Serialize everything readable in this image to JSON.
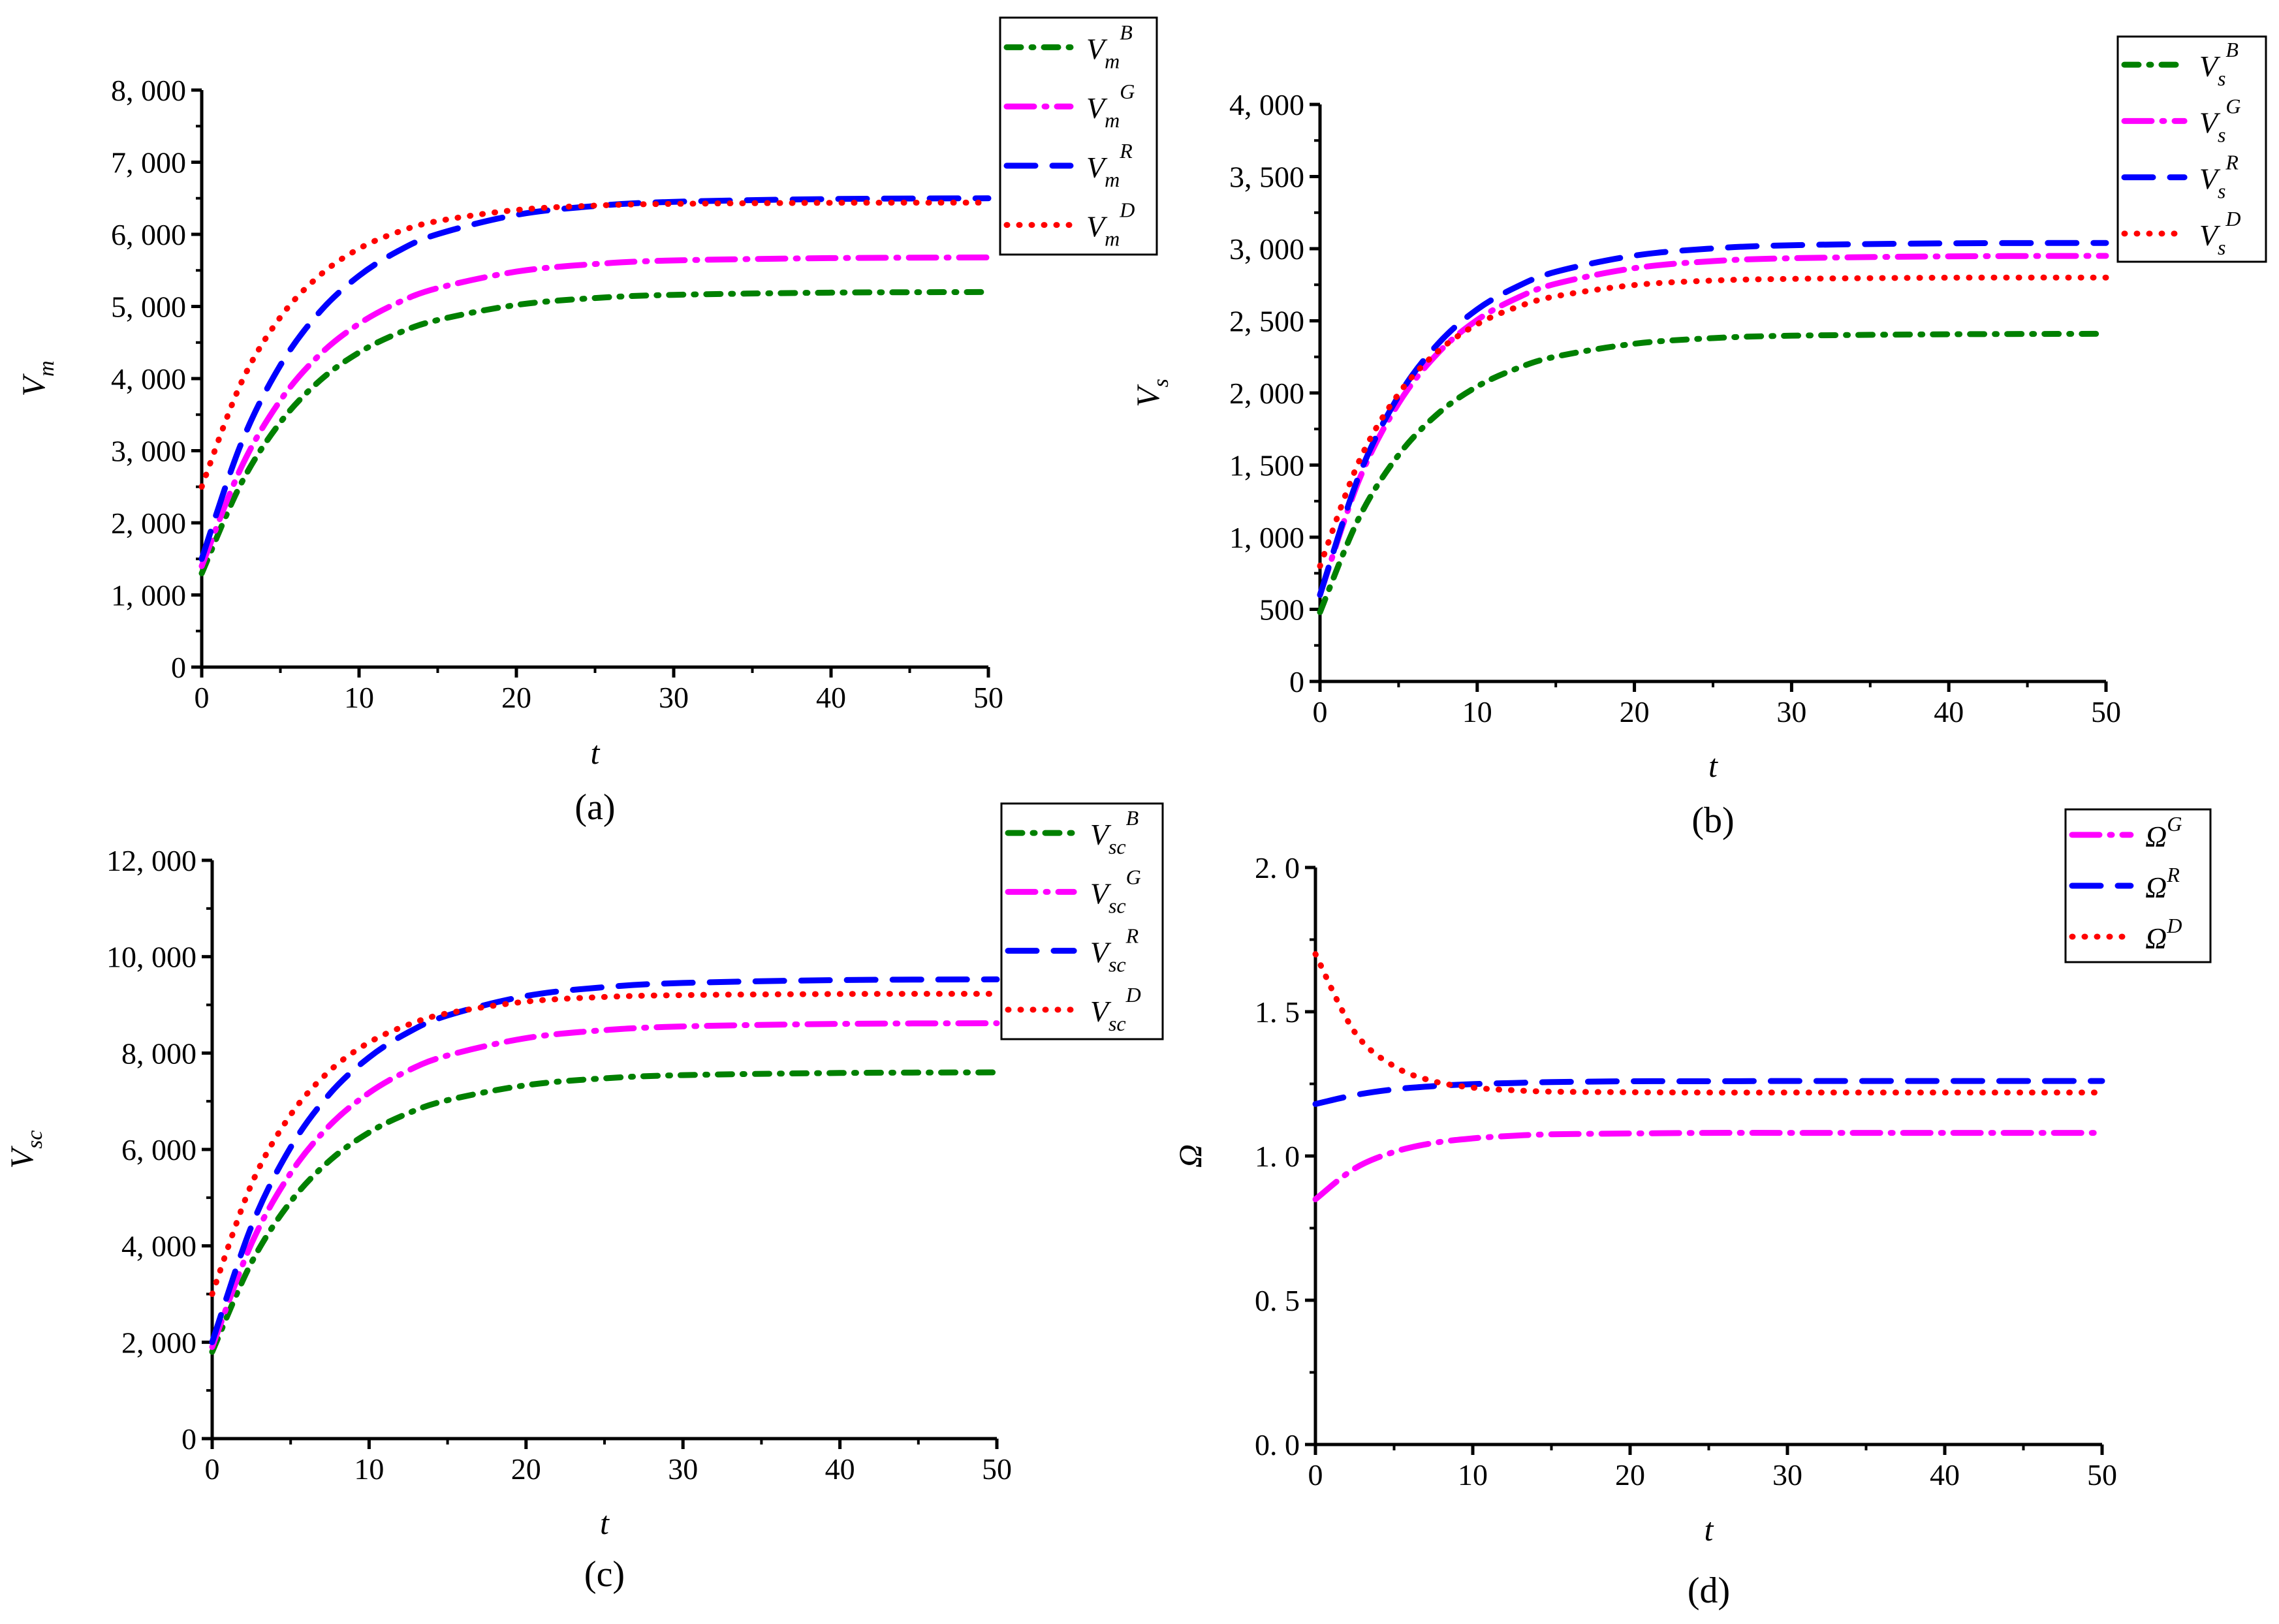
{
  "chart_data": [
    {
      "type": "line",
      "caption": "(a)",
      "xlabel": "t",
      "ylabel": {
        "base": "V",
        "sub": "m"
      },
      "xlim": [
        0,
        50
      ],
      "ylim": [
        0,
        8000
      ],
      "xticks": [
        0,
        10,
        20,
        30,
        40,
        50
      ],
      "xtick_labels": [
        "0",
        "10",
        "20",
        "30",
        "40",
        "50"
      ],
      "yticks": [
        0,
        1000,
        2000,
        3000,
        4000,
        5000,
        6000,
        7000,
        8000
      ],
      "ytick_labels": [
        "0",
        "1, 000",
        "2, 000",
        "3, 000",
        "4, 000",
        "5, 000",
        "6, 000",
        "7, 000",
        "8, 000"
      ],
      "legend_position": "top-right-outside",
      "x": [
        0,
        2.5,
        5,
        7.5,
        10,
        12.5,
        15,
        20,
        25,
        30,
        40,
        50
      ],
      "series": [
        {
          "name": {
            "base": "V",
            "sub": "m",
            "sup": "B"
          },
          "style": "dashdot-short",
          "color": "#008000",
          "values": [
            1300,
            2544,
            3394,
            3971,
            4362,
            4631,
            4812,
            5021,
            5117,
            5161,
            5192,
            5200
          ]
        },
        {
          "name": {
            "base": "V",
            "sub": "m",
            "sup": "G"
          },
          "style": "dashdot-long",
          "color": "#ff00ff",
          "values": [
            1400,
            2765,
            3698,
            4332,
            4760,
            5055,
            5254,
            5483,
            5588,
            5638,
            5671,
            5680
          ]
        },
        {
          "name": {
            "base": "V",
            "sub": "m",
            "sup": "R"
          },
          "style": "dashed",
          "color": "#0000ff",
          "values": [
            1500,
            3095,
            4185,
            4925,
            5425,
            5770,
            6003,
            6270,
            6393,
            6451,
            6490,
            6500
          ]
        },
        {
          "name": {
            "base": "V",
            "sub": "m",
            "sup": "D"
          },
          "style": "dotted",
          "color": "#ff0000",
          "values": [
            2500,
            3938,
            4852,
            5431,
            5802,
            6034,
            6184,
            6338,
            6398,
            6423,
            6437,
            6440
          ]
        }
      ]
    },
    {
      "type": "line",
      "caption": "(b)",
      "xlabel": "t",
      "ylabel": {
        "base": "V",
        "sub": "s"
      },
      "xlim": [
        0,
        50
      ],
      "ylim": [
        0,
        4000
      ],
      "xticks": [
        0,
        10,
        20,
        30,
        40,
        50
      ],
      "xtick_labels": [
        "0",
        "10",
        "20",
        "30",
        "40",
        "50"
      ],
      "yticks": [
        0,
        500,
        1000,
        1500,
        2000,
        2500,
        3000,
        3500,
        4000
      ],
      "ytick_labels": [
        "0",
        "500",
        "1, 000",
        "1, 500",
        "2, 000",
        "2, 500",
        "3, 000",
        "3, 500",
        "4, 000"
      ],
      "legend_position": "top-right-outside",
      "x": [
        0,
        2.5,
        5,
        7.5,
        10,
        12.5,
        15,
        20,
        25,
        30,
        40,
        50
      ],
      "series": [
        {
          "name": {
            "base": "V",
            "sub": "s",
            "sup": "B"
          },
          "style": "dashdot-short",
          "color": "#008000",
          "values": [
            480,
            1138,
            1570,
            1856,
            2045,
            2169,
            2252,
            2341,
            2380,
            2397,
            2407,
            2410
          ]
        },
        {
          "name": {
            "base": "V",
            "sub": "s",
            "sup": "G"
          },
          "style": "dashdot-long",
          "color": "#ff00ff",
          "values": [
            600,
            1401,
            1928,
            2276,
            2506,
            2656,
            2757,
            2865,
            2914,
            2934,
            2947,
            2950
          ]
        },
        {
          "name": {
            "base": "V",
            "sub": "s",
            "sup": "R"
          },
          "style": "dashed",
          "color": "#0000ff",
          "values": [
            600,
            1432,
            1979,
            2340,
            2579,
            2735,
            2840,
            2952,
            3002,
            3024,
            3037,
            3040
          ]
        },
        {
          "name": {
            "base": "V",
            "sub": "s",
            "sup": "D"
          },
          "style": "dotted",
          "color": "#ff0000",
          "values": [
            800,
            1530,
            1994,
            2288,
            2476,
            2594,
            2670,
            2748,
            2779,
            2791,
            2799,
            2800
          ]
        }
      ]
    },
    {
      "type": "line",
      "caption": "(c)",
      "xlabel": "t",
      "ylabel": {
        "base": "V",
        "sub": "sc"
      },
      "xlim": [
        0,
        50
      ],
      "ylim": [
        0,
        12000
      ],
      "xticks": [
        0,
        10,
        20,
        30,
        40,
        50
      ],
      "xtick_labels": [
        "0",
        "10",
        "20",
        "30",
        "40",
        "50"
      ],
      "yticks": [
        0,
        2000,
        4000,
        6000,
        8000,
        10000,
        12000
      ],
      "ytick_labels": [
        "0",
        "2, 000",
        "4, 000",
        "6, 000",
        "8, 000",
        "10, 000",
        "12, 000"
      ],
      "legend_position": "top-right-outside",
      "x": [
        0,
        2.5,
        5,
        7.5,
        10,
        12.5,
        15,
        20,
        25,
        30,
        40,
        50
      ],
      "series": [
        {
          "name": {
            "base": "V",
            "sub": "sc",
            "sup": "B"
          },
          "style": "dashdot-short",
          "color": "#008000",
          "values": [
            1800,
            3650,
            4915,
            5773,
            6353,
            6753,
            7023,
            7333,
            7476,
            7543,
            7588,
            7600
          ]
        },
        {
          "name": {
            "base": "V",
            "sub": "sc",
            "sup": "G"
          },
          "style": "dashdot-long",
          "color": "#ff00ff",
          "values": [
            1900,
            4044,
            5509,
            6503,
            7175,
            7639,
            7951,
            8311,
            8476,
            8553,
            8606,
            8620
          ]
        },
        {
          "name": {
            "base": "V",
            "sub": "sc",
            "sup": "R"
          },
          "style": "dashed",
          "color": "#0000ff",
          "values": [
            2000,
            4402,
            6044,
            7158,
            7911,
            8431,
            8781,
            9184,
            9369,
            9455,
            9514,
            9530
          ]
        },
        {
          "name": {
            "base": "V",
            "sub": "sc",
            "sup": "D"
          },
          "style": "dotted",
          "color": "#ff0000",
          "values": [
            3000,
            5274,
            6719,
            7635,
            8221,
            8588,
            8825,
            9068,
            9164,
            9203,
            9226,
            9230
          ]
        }
      ]
    },
    {
      "type": "line",
      "caption": "(d)",
      "xlabel": "t",
      "ylabel": {
        "base": "Ω",
        "sub": ""
      },
      "xlim": [
        0,
        50
      ],
      "ylim": [
        0,
        2
      ],
      "xticks": [
        0,
        10,
        20,
        30,
        40,
        50
      ],
      "xtick_labels": [
        "0",
        "10",
        "20",
        "30",
        "40",
        "50"
      ],
      "yticks": [
        0,
        0.5,
        1,
        1.5,
        2
      ],
      "ytick_labels": [
        "0. 0",
        "0. 5",
        "1. 0",
        "1. 5",
        "2. 0"
      ],
      "legend_position": "top-right-outside",
      "x": [
        0,
        2.5,
        5,
        7.5,
        10,
        12.5,
        15,
        20,
        25,
        30,
        40,
        50
      ],
      "series": [
        {
          "name": {
            "base": "Ω",
            "sub": "",
            "sup": "G"
          },
          "style": "dashdot-long",
          "color": "#ff00ff",
          "values": [
            0.85,
            0.957,
            1.014,
            1.045,
            1.061,
            1.07,
            1.075,
            1.078,
            1.08,
            1.08,
            1.08,
            1.08
          ]
        },
        {
          "name": {
            "base": "Ω",
            "sub": "",
            "sup": "R"
          },
          "style": "dashed",
          "color": "#0000ff",
          "values": [
            1.18,
            1.211,
            1.231,
            1.242,
            1.249,
            1.253,
            1.256,
            1.259,
            1.259,
            1.26,
            1.26,
            1.26
          ]
        },
        {
          "name": {
            "base": "Ω",
            "sub": "",
            "sup": "D"
          },
          "style": "dotted",
          "color": "#ff0000",
          "values": [
            1.7,
            1.429,
            1.311,
            1.259,
            1.237,
            1.228,
            1.223,
            1.221,
            1.22,
            1.22,
            1.22,
            1.22
          ]
        }
      ]
    }
  ]
}
